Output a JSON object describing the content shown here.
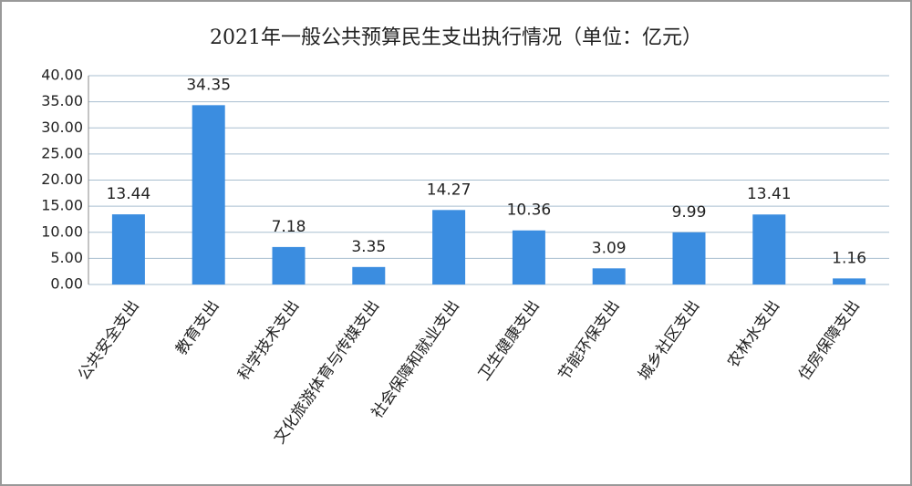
{
  "chart_data": {
    "type": "bar",
    "title": "2021年一般公共预算民生支出执行情况（单位：亿元）",
    "categories": [
      "公共安全支出",
      "教育支出",
      "科学技术支出",
      "文化旅游体育与传媒支出",
      "社会保障和就业支出",
      "卫生健康支出",
      "节能环保支出",
      "城乡社区支出",
      "农林水支出",
      "住房保障支出"
    ],
    "values": [
      13.44,
      34.35,
      7.18,
      3.35,
      14.27,
      10.36,
      3.09,
      9.99,
      13.41,
      1.16
    ],
    "color": "#3b8de0",
    "ylim": [
      0,
      40
    ],
    "yticks": [
      {
        "value": 0,
        "label": "0.00"
      },
      {
        "value": 5,
        "label": "5.00"
      },
      {
        "value": 10,
        "label": "10.00"
      },
      {
        "value": 15,
        "label": "15.00"
      },
      {
        "value": 20,
        "label": "20.00"
      },
      {
        "value": 25,
        "label": "25.00"
      },
      {
        "value": 30,
        "label": "30.00"
      },
      {
        "value": 35,
        "label": "35.00"
      },
      {
        "value": 40,
        "label": "40.00"
      }
    ],
    "grid": true
  }
}
